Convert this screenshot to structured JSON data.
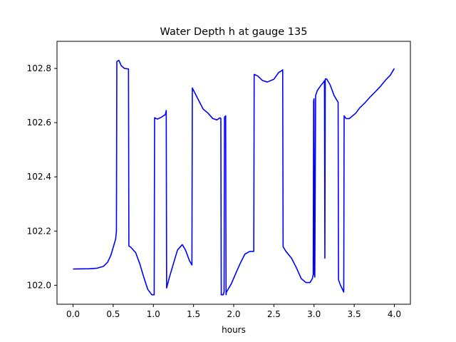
{
  "chart_data": {
    "type": "line",
    "title": "Water Depth h at gauge 135",
    "xlabel": "hours",
    "ylabel": "",
    "xlim": [
      -0.2,
      4.2
    ],
    "ylim": [
      101.93,
      102.9
    ],
    "x_ticks": [
      0.0,
      0.5,
      1.0,
      1.5,
      2.0,
      2.5,
      3.0,
      3.5,
      4.0
    ],
    "x_tick_labels": [
      "0.0",
      "0.5",
      "1.0",
      "1.5",
      "2.0",
      "2.5",
      "3.0",
      "3.5",
      "4.0"
    ],
    "y_ticks": [
      102.0,
      102.2,
      102.4,
      102.6,
      102.8
    ],
    "y_tick_labels": [
      "102.0",
      "102.2",
      "102.4",
      "102.6",
      "102.8"
    ],
    "grid": false,
    "legend": "none",
    "series": [
      {
        "color": "#0000ff",
        "x": [
          0.0,
          0.2,
          0.3,
          0.38,
          0.43,
          0.47,
          0.5,
          0.53,
          0.54,
          0.545,
          0.57,
          0.6,
          0.64,
          0.69,
          0.695,
          0.72,
          0.78,
          0.83,
          0.88,
          0.93,
          0.98,
          1.01,
          1.015,
          1.05,
          1.1,
          1.15,
          1.16,
          1.165,
          1.2,
          1.25,
          1.3,
          1.36,
          1.4,
          1.45,
          1.48,
          1.485,
          1.55,
          1.62,
          1.68,
          1.74,
          1.79,
          1.83,
          1.84,
          1.845,
          1.87,
          1.88,
          1.885,
          1.9,
          1.905,
          1.91,
          1.93,
          1.97,
          2.02,
          2.08,
          2.14,
          2.2,
          2.24,
          2.25,
          2.255,
          2.3,
          2.36,
          2.42,
          2.5,
          2.56,
          2.6,
          2.61,
          2.615,
          2.65,
          2.72,
          2.78,
          2.84,
          2.9,
          2.95,
          2.98,
          2.99,
          2.995,
          3.0,
          3.005,
          3.01,
          3.02,
          3.04,
          3.08,
          3.12,
          3.13,
          3.135,
          3.14,
          3.145,
          3.16,
          3.2,
          3.25,
          3.29,
          3.3,
          3.305,
          3.33,
          3.37,
          3.375,
          3.4,
          3.44,
          3.48,
          3.52,
          3.57,
          3.63,
          3.7,
          3.77,
          3.83,
          3.9,
          3.95,
          4.0
        ],
        "y": [
          102.06,
          102.061,
          102.063,
          102.07,
          102.085,
          102.11,
          102.14,
          102.17,
          102.2,
          102.825,
          102.83,
          102.81,
          102.8,
          102.798,
          102.145,
          102.14,
          102.12,
          102.08,
          102.03,
          101.985,
          101.965,
          101.965,
          102.618,
          102.613,
          102.62,
          102.63,
          102.645,
          101.99,
          102.03,
          102.08,
          102.13,
          102.15,
          102.13,
          102.09,
          102.075,
          102.728,
          102.69,
          102.65,
          102.635,
          102.615,
          102.61,
          102.618,
          102.615,
          101.965,
          101.965,
          101.975,
          102.62,
          102.625,
          101.965,
          101.975,
          101.985,
          102.005,
          102.04,
          102.08,
          102.115,
          102.125,
          102.125,
          102.125,
          102.778,
          102.772,
          102.755,
          102.75,
          102.76,
          102.785,
          102.792,
          102.795,
          102.142,
          102.125,
          102.1,
          102.065,
          102.025,
          102.01,
          102.01,
          102.025,
          102.04,
          102.68,
          102.688,
          102.04,
          102.03,
          102.7,
          102.718,
          102.735,
          102.75,
          102.755,
          102.1,
          102.76,
          102.762,
          102.76,
          102.74,
          102.7,
          102.68,
          102.675,
          102.02,
          102.0,
          101.975,
          102.625,
          102.615,
          102.615,
          102.625,
          102.635,
          102.655,
          102.672,
          102.695,
          102.716,
          102.735,
          102.76,
          102.775,
          102.8
        ]
      }
    ]
  }
}
